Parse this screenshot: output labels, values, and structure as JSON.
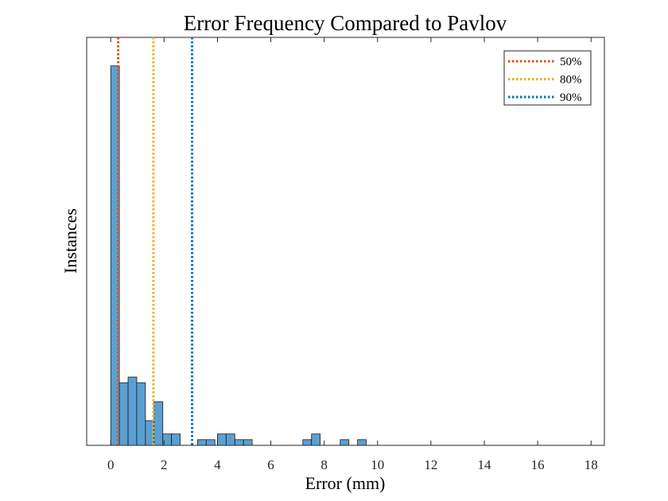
{
  "chart_data": {
    "type": "bar",
    "title": "Error Frequency Compared to Pavlov",
    "xlabel": "Error (mm)",
    "ylabel": "Instances",
    "xlim": [
      -0.9,
      18.5
    ],
    "ylim": [
      0,
      21.5
    ],
    "x_ticks": [
      0,
      2,
      4,
      6,
      8,
      10,
      12,
      14,
      16,
      18
    ],
    "y_ticks": [],
    "grid": false,
    "bin_width": 0.3255,
    "bar_color": "#5aa0d2",
    "bar_edge_color": "#1a1a1a",
    "bins": [
      {
        "x0": 0.0,
        "count": 20
      },
      {
        "x0": 0.3255,
        "count": 3.3
      },
      {
        "x0": 0.651,
        "count": 3.6
      },
      {
        "x0": 0.9765,
        "count": 3.3
      },
      {
        "x0": 1.302,
        "count": 1.3
      },
      {
        "x0": 1.6275,
        "count": 2.3
      },
      {
        "x0": 1.953,
        "count": 0.6
      },
      {
        "x0": 2.2785,
        "count": 0.6
      },
      {
        "x0": 3.255,
        "count": 0.3
      },
      {
        "x0": 3.5805,
        "count": 0.3
      },
      {
        "x0": 4.0,
        "count": 0.6
      },
      {
        "x0": 4.3255,
        "count": 0.6
      },
      {
        "x0": 4.651,
        "count": 0.3
      },
      {
        "x0": 4.9765,
        "count": 0.3
      },
      {
        "x0": 7.2,
        "count": 0.3
      },
      {
        "x0": 7.5255,
        "count": 0.6
      },
      {
        "x0": 8.6,
        "count": 0.3
      },
      {
        "x0": 9.25,
        "count": 0.3
      }
    ],
    "reference_lines": [
      {
        "name": "50%",
        "x": 0.28,
        "color": "#d95319"
      },
      {
        "name": "80%",
        "x": 1.6,
        "color": "#edb120"
      },
      {
        "name": "90%",
        "x": 3.05,
        "color": "#0072bd"
      }
    ],
    "legend_position": "top-right"
  }
}
